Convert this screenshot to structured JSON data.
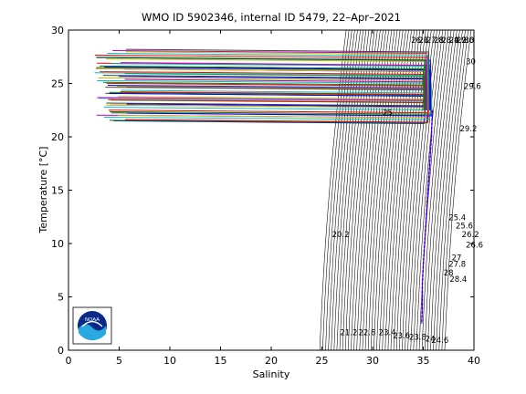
{
  "chart_data": {
    "type": "line",
    "title": "WMO ID 5902346, internal ID 5479, 22–Apr–2021",
    "xlabel": "Salinity",
    "ylabel": "Temperature [°C]",
    "xlim": [
      0,
      40
    ],
    "ylim": [
      0,
      30
    ],
    "xticks": [
      0,
      5,
      10,
      15,
      20,
      25,
      30,
      35,
      40
    ],
    "yticks": [
      0,
      5,
      10,
      15,
      20,
      25,
      30
    ],
    "grid": false,
    "legend": "none",
    "isopycnal_labels": [
      "20.2",
      "21.2",
      "22.8",
      "23.4",
      "23.6",
      "23.8",
      "24",
      "24.6",
      "25",
      "25.4",
      "25.6",
      "26.2",
      "26.6",
      "27",
      "27.8",
      "28",
      "28.4",
      "29.2",
      "29.6",
      "30"
    ],
    "profile_summary": {
      "surface_layer": {
        "salinity_range": [
          2.5,
          35.8
        ],
        "temperature_range": [
          21.5,
          28.2
        ],
        "profile_count": 56
      },
      "deep_profile": {
        "x": [
          35.9,
          35.8,
          35.6,
          35.4,
          35.2,
          35.0,
          34.9,
          34.9,
          34.85
        ],
        "y": [
          22.5,
          20,
          17,
          14,
          11,
          8,
          6,
          4,
          2.5
        ]
      }
    },
    "logo": {
      "text": "NOAA",
      "colors": [
        "#0a2a8a",
        "#2aa8e0",
        "#ffffff"
      ]
    }
  }
}
